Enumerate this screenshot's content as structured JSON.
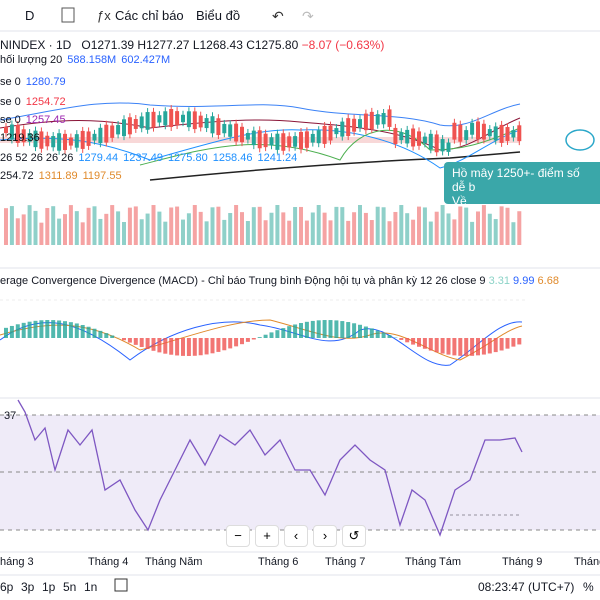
{
  "toolbar": {
    "interval": "D",
    "indicators": "Các chỉ báo",
    "chart": "Biểu đồ"
  },
  "header": {
    "symbol": "NINDEX · 1D",
    "open": "O1271.39",
    "high": "H1277.27",
    "low": "L1268.43",
    "close": "C1275.80",
    "change": "−8.07 (−0.63%)"
  },
  "legend": [
    {
      "name": "hối lượng 20",
      "values": [
        "588.158M",
        "602.427M"
      ]
    },
    {
      "name": "se 0",
      "values": [
        "1280.79"
      ]
    },
    {
      "name": "se 0",
      "values": [
        "1254.72"
      ]
    },
    {
      "name": "se 0",
      "values": [
        "1257.45"
      ]
    },
    {
      "name": "",
      "values": [
        "1219.36"
      ]
    },
    {
      "name": "26 52 26 26 26",
      "values": [
        "1279.44",
        "1237.49",
        "1275.80",
        "1258.46",
        "1241.24"
      ]
    },
    {
      "name": "254.72",
      "values": [
        "1311.89",
        "1197.55"
      ]
    }
  ],
  "tooltip": {
    "line1": "Hồ mây 1250+- điểm số dễ b",
    "line2": "Về"
  },
  "macd": {
    "title": "erage Convergence Divergence (MACD) - Chỉ báo Trung bình Động hội tụ và phân kỳ 12 26 close 9",
    "values": [
      "3.31",
      "9.99",
      "6.68"
    ]
  },
  "rsi": {
    "label": "37"
  },
  "zoom": [
    "−",
    "+",
    "‹",
    "›",
    "↺"
  ],
  "xaxis": [
    "háng 3",
    "Tháng 4",
    "Tháng Năm",
    "Tháng 6",
    "Tháng 7",
    "Tháng Tám",
    "Tháng 9",
    "Tháng"
  ],
  "ranges": [
    "6p",
    "3p",
    "1p",
    "5n",
    "1n"
  ],
  "clock": "08:23:47 (UTC+7)",
  "percent": "%"
}
